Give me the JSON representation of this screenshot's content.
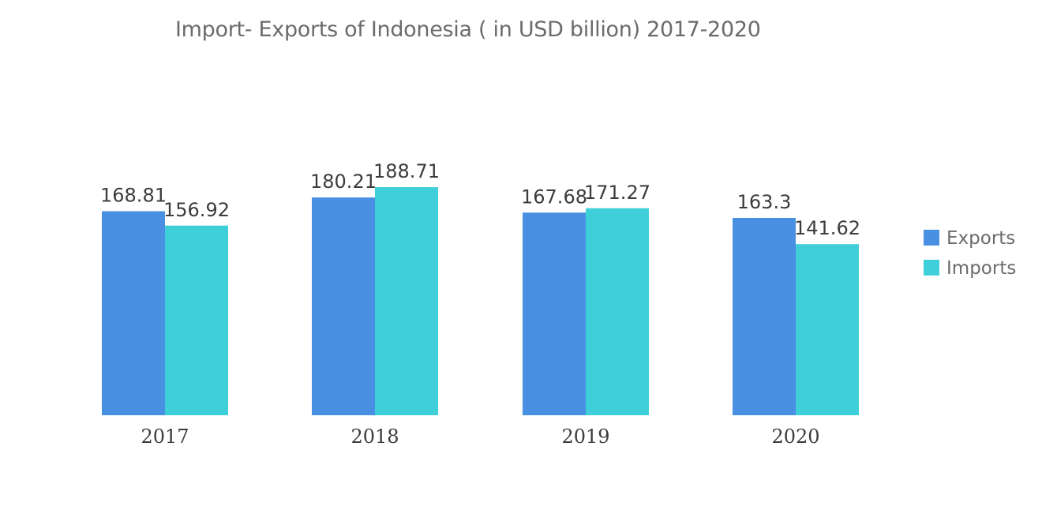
{
  "chart_data": {
    "type": "bar",
    "title": "Import- Exports of Indonesia ( in USD billion) 2017-2020",
    "categories": [
      "2017",
      "2018",
      "2019",
      "2020"
    ],
    "series": [
      {
        "name": "Exports",
        "values": [
          168.81,
          180.21,
          167.68,
          163.3
        ],
        "color": "#4a90e2"
      },
      {
        "name": "Imports",
        "values": [
          156.92,
          188.71,
          171.27,
          141.62
        ],
        "color": "#3ecfd9"
      }
    ],
    "ylim": [
      0,
      200
    ],
    "grid": false,
    "legend_position": "right"
  }
}
